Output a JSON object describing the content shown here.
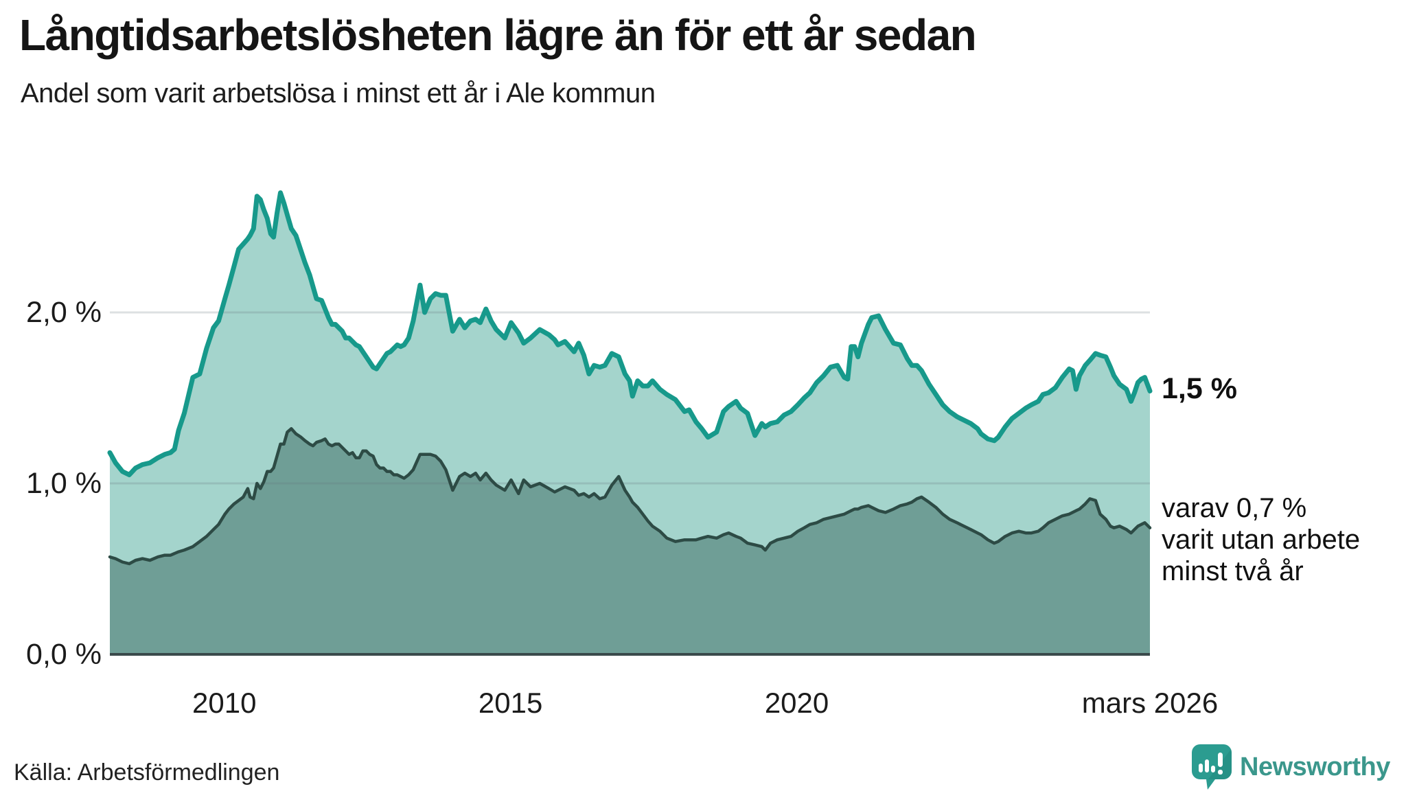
{
  "header": {
    "title": "Långtidsarbetslösheten lägre än för ett år sedan",
    "subtitle": "Andel som varit arbetslösa i minst ett år i Ale kommun"
  },
  "footer": {
    "source": "Källa: Arbetsförmedlingen",
    "brand": "Newsworthy"
  },
  "colors": {
    "total_line": "#17998b",
    "total_fill": "#a4d4cc",
    "two_plus_line": "#2d4b45",
    "two_plus_fill": "#6f9e96",
    "gridline": "rgba(100,115,125,0.22)",
    "axis": "#3a4a4b",
    "brand_teal": "#2b9c90"
  },
  "chart_data": {
    "type": "area",
    "title": "Långtidsarbetslösheten lägre än för ett år sedan",
    "subtitle": "Andel som varit arbetslösa i minst ett år i Ale kommun",
    "xlabel": "",
    "ylabel": "",
    "xlim": [
      2008.0,
      2026.17
    ],
    "ylim": [
      0,
      3.0
    ],
    "grid": "horizontal",
    "legend_position": "none",
    "y_ticks": [
      {
        "value": 0,
        "label": "0,0 %"
      },
      {
        "value": 1,
        "label": "1,0 %"
      },
      {
        "value": 2,
        "label": "2,0 %"
      }
    ],
    "x_ticks": [
      {
        "value": 2010,
        "label": "2010"
      },
      {
        "value": 2015,
        "label": "2015"
      },
      {
        "value": 2020,
        "label": "2020"
      },
      {
        "value": 2026.17,
        "label": "mars 2026"
      }
    ],
    "annotations": {
      "end_label_total": "1,5 %",
      "end_label_two_plus": "varav 0,7 %\nvarit utan arbete\nminst två år"
    },
    "x": [
      2008.0,
      2008.1,
      2008.22,
      2008.34,
      2008.45,
      2008.57,
      2008.7,
      2008.84,
      2008.96,
      2009.06,
      2009.13,
      2009.2,
      2009.3,
      2009.45,
      2009.57,
      2009.69,
      2009.81,
      2009.9,
      2010.01,
      2010.08,
      2010.17,
      2010.25,
      2010.33,
      2010.41,
      2010.45,
      2010.51,
      2010.57,
      2010.63,
      2010.69,
      2010.75,
      2010.81,
      2010.86,
      2010.92,
      2010.98,
      2011.04,
      2011.1,
      2011.17,
      2011.25,
      2011.34,
      2011.41,
      2011.49,
      2011.55,
      2011.61,
      2011.7,
      2011.76,
      2011.82,
      2011.88,
      2011.94,
      2012.0,
      2012.06,
      2012.12,
      2012.18,
      2012.24,
      2012.3,
      2012.36,
      2012.42,
      2012.48,
      2012.54,
      2012.6,
      2012.66,
      2012.72,
      2012.78,
      2012.84,
      2012.9,
      2012.96,
      2013.02,
      2013.08,
      2013.14,
      2013.22,
      2013.3,
      2013.42,
      2013.5,
      2013.6,
      2013.69,
      2013.78,
      2013.87,
      2013.99,
      2014.11,
      2014.2,
      2014.3,
      2014.39,
      2014.47,
      2014.57,
      2014.66,
      2014.75,
      2014.9,
      2015.01,
      2015.14,
      2015.23,
      2015.35,
      2015.51,
      2015.67,
      2015.77,
      2015.83,
      2015.95,
      2016.11,
      2016.19,
      2016.28,
      2016.37,
      2016.46,
      2016.56,
      2016.65,
      2016.77,
      2016.89,
      2017.0,
      2017.08,
      2017.13,
      2017.22,
      2017.31,
      2017.4,
      2017.48,
      2017.61,
      2017.73,
      2017.88,
      2018.04,
      2018.12,
      2018.24,
      2018.34,
      2018.45,
      2018.6,
      2018.72,
      2018.81,
      2018.94,
      2019.02,
      2019.14,
      2019.27,
      2019.39,
      2019.45,
      2019.54,
      2019.66,
      2019.78,
      2019.9,
      2020.02,
      2020.13,
      2020.23,
      2020.35,
      2020.47,
      2020.59,
      2020.71,
      2020.83,
      2020.89,
      2020.95,
      2021.01,
      2021.07,
      2021.13,
      2021.25,
      2021.31,
      2021.43,
      2021.55,
      2021.69,
      2021.81,
      2021.93,
      2022.01,
      2022.1,
      2022.18,
      2022.31,
      2022.43,
      2022.55,
      2022.67,
      2022.8,
      2022.92,
      2023.04,
      2023.16,
      2023.22,
      2023.34,
      2023.45,
      2023.52,
      2023.64,
      2023.76,
      2023.88,
      2024.0,
      2024.1,
      2024.22,
      2024.3,
      2024.4,
      2024.52,
      2024.64,
      2024.76,
      2024.82,
      2024.88,
      2024.94,
      2025.04,
      2025.12,
      2025.22,
      2025.3,
      2025.4,
      2025.48,
      2025.54,
      2025.64,
      2025.76,
      2025.84,
      2025.9,
      2025.96,
      2026.02,
      2026.08,
      2026.17
    ],
    "series": [
      {
        "name": "Andel som varit arbetslösa i minst ett år",
        "color": "#17998b",
        "fill": "#a4d4cc",
        "values": [
          1.18,
          1.12,
          1.07,
          1.05,
          1.09,
          1.11,
          1.12,
          1.15,
          1.17,
          1.18,
          1.2,
          1.31,
          1.41,
          1.62,
          1.64,
          1.79,
          1.91,
          1.95,
          2.08,
          2.16,
          2.27,
          2.37,
          2.4,
          2.43,
          2.45,
          2.49,
          2.68,
          2.66,
          2.6,
          2.55,
          2.46,
          2.44,
          2.58,
          2.7,
          2.64,
          2.57,
          2.49,
          2.45,
          2.36,
          2.29,
          2.22,
          2.15,
          2.08,
          2.07,
          2.02,
          1.97,
          1.93,
          1.93,
          1.91,
          1.89,
          1.85,
          1.85,
          1.83,
          1.81,
          1.8,
          1.77,
          1.74,
          1.71,
          1.68,
          1.67,
          1.7,
          1.73,
          1.76,
          1.77,
          1.79,
          1.81,
          1.8,
          1.81,
          1.85,
          1.95,
          2.16,
          2.0,
          2.08,
          2.11,
          2.1,
          2.1,
          1.89,
          1.96,
          1.91,
          1.95,
          1.96,
          1.94,
          2.02,
          1.95,
          1.9,
          1.85,
          1.94,
          1.88,
          1.82,
          1.85,
          1.9,
          1.87,
          1.84,
          1.81,
          1.83,
          1.77,
          1.82,
          1.75,
          1.64,
          1.69,
          1.68,
          1.69,
          1.76,
          1.74,
          1.64,
          1.6,
          1.51,
          1.6,
          1.57,
          1.57,
          1.6,
          1.55,
          1.52,
          1.49,
          1.42,
          1.43,
          1.36,
          1.32,
          1.27,
          1.3,
          1.42,
          1.45,
          1.48,
          1.44,
          1.41,
          1.28,
          1.35,
          1.33,
          1.35,
          1.36,
          1.4,
          1.42,
          1.46,
          1.5,
          1.53,
          1.59,
          1.63,
          1.68,
          1.69,
          1.62,
          1.61,
          1.8,
          1.8,
          1.74,
          1.82,
          1.93,
          1.97,
          1.98,
          1.9,
          1.82,
          1.81,
          1.73,
          1.69,
          1.69,
          1.66,
          1.58,
          1.52,
          1.46,
          1.42,
          1.39,
          1.37,
          1.35,
          1.32,
          1.29,
          1.26,
          1.25,
          1.27,
          1.33,
          1.38,
          1.41,
          1.44,
          1.46,
          1.48,
          1.52,
          1.53,
          1.56,
          1.62,
          1.67,
          1.66,
          1.55,
          1.63,
          1.69,
          1.72,
          1.76,
          1.75,
          1.74,
          1.68,
          1.63,
          1.58,
          1.55,
          1.48,
          1.53,
          1.59,
          1.61,
          1.62,
          1.54
        ]
      },
      {
        "name": "varav utan arbete minst två år",
        "color": "#2d4b45",
        "fill": "#6f9e96",
        "values": [
          0.57,
          0.56,
          0.54,
          0.53,
          0.55,
          0.56,
          0.55,
          0.57,
          0.58,
          0.58,
          0.59,
          0.6,
          0.61,
          0.63,
          0.66,
          0.69,
          0.73,
          0.76,
          0.82,
          0.85,
          0.88,
          0.9,
          0.92,
          0.97,
          0.92,
          0.91,
          1.0,
          0.97,
          1.01,
          1.07,
          1.07,
          1.09,
          1.16,
          1.23,
          1.23,
          1.3,
          1.32,
          1.29,
          1.27,
          1.25,
          1.23,
          1.22,
          1.24,
          1.25,
          1.26,
          1.23,
          1.22,
          1.23,
          1.23,
          1.21,
          1.19,
          1.17,
          1.18,
          1.15,
          1.15,
          1.19,
          1.19,
          1.17,
          1.16,
          1.11,
          1.09,
          1.09,
          1.07,
          1.07,
          1.05,
          1.05,
          1.04,
          1.03,
          1.05,
          1.08,
          1.17,
          1.17,
          1.17,
          1.16,
          1.13,
          1.08,
          0.96,
          1.04,
          1.06,
          1.04,
          1.06,
          1.02,
          1.06,
          1.02,
          0.99,
          0.96,
          1.02,
          0.94,
          1.02,
          0.98,
          1.0,
          0.97,
          0.95,
          0.96,
          0.98,
          0.96,
          0.93,
          0.94,
          0.92,
          0.94,
          0.91,
          0.92,
          0.99,
          1.04,
          0.96,
          0.92,
          0.89,
          0.86,
          0.82,
          0.78,
          0.75,
          0.72,
          0.68,
          0.66,
          0.67,
          0.67,
          0.67,
          0.68,
          0.69,
          0.68,
          0.7,
          0.71,
          0.69,
          0.68,
          0.65,
          0.64,
          0.63,
          0.61,
          0.65,
          0.67,
          0.68,
          0.69,
          0.72,
          0.74,
          0.76,
          0.77,
          0.79,
          0.8,
          0.81,
          0.82,
          0.83,
          0.84,
          0.85,
          0.85,
          0.86,
          0.87,
          0.86,
          0.84,
          0.83,
          0.85,
          0.87,
          0.88,
          0.89,
          0.91,
          0.92,
          0.89,
          0.86,
          0.82,
          0.79,
          0.77,
          0.75,
          0.73,
          0.71,
          0.7,
          0.67,
          0.65,
          0.66,
          0.69,
          0.71,
          0.72,
          0.71,
          0.71,
          0.72,
          0.74,
          0.77,
          0.79,
          0.81,
          0.82,
          0.83,
          0.84,
          0.85,
          0.88,
          0.91,
          0.9,
          0.82,
          0.79,
          0.75,
          0.74,
          0.75,
          0.73,
          0.71,
          0.73,
          0.75,
          0.76,
          0.77,
          0.74
        ]
      }
    ]
  }
}
